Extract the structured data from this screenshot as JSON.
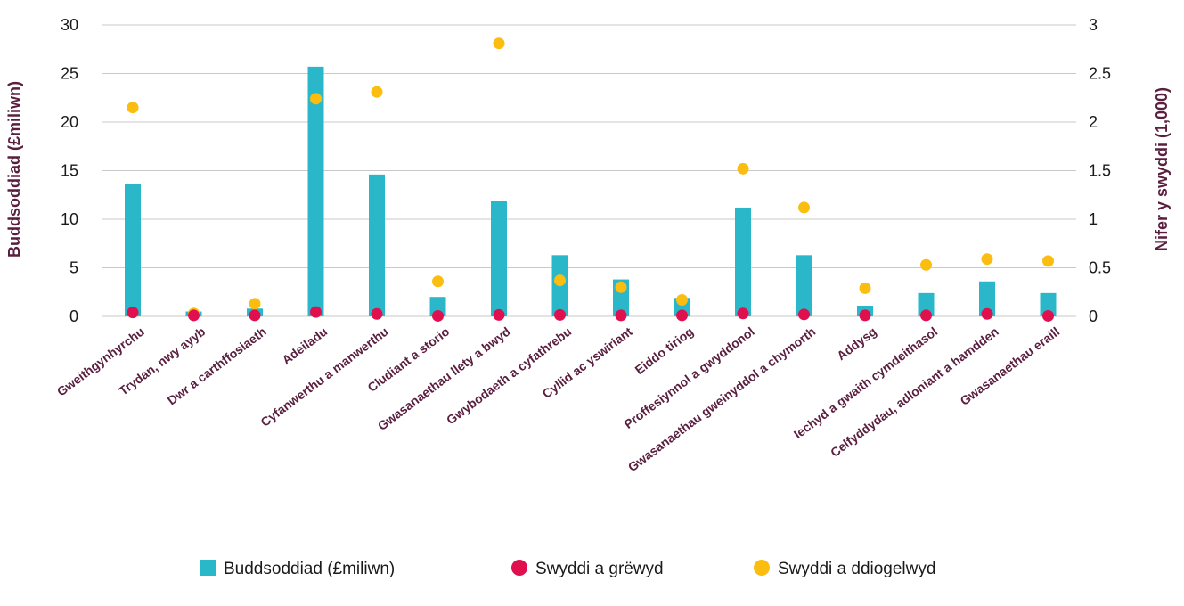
{
  "chart_data": {
    "type": "bar",
    "categories": [
      "Gweithgynhyrchu",
      "Trydan, nwy ayyb",
      "Dwr a carthffosiaeth",
      "Adeiladu",
      "Cyfanwerthu a manwerthu",
      "Cludiant a storio",
      "Gwasanaethau llety a bwyd",
      "Gwybodaeth a cyfathrebu",
      "Cyllid ac yswiriant",
      "Eiddo tiriog",
      "Proffesiynnol a gwyddonol",
      "Gwasanaethau gweinyddol a chymorth",
      "Addysg",
      "Iechyd a gwaith cymdeithasol",
      "Celfyddydau, adloniant a hamdden",
      "Gwasanaethau eraill"
    ],
    "series": [
      {
        "name": "Buddsoddiad (£miliwn)",
        "type": "bar",
        "axis": "left",
        "color": "#2ab7ca",
        "values": [
          13.6,
          0.5,
          0.8,
          25.7,
          14.6,
          2.0,
          11.9,
          6.3,
          3.8,
          1.9,
          11.2,
          6.3,
          1.1,
          2.4,
          3.6,
          2.4
        ]
      },
      {
        "name": "Swyddi a grëwyd",
        "type": "scatter",
        "axis": "right",
        "color": "#e0104f",
        "values": [
          0.04,
          0.01,
          0.01,
          0.045,
          0.025,
          0.005,
          0.015,
          0.015,
          0.01,
          0.01,
          0.03,
          0.02,
          0.01,
          0.01,
          0.025,
          0.005
        ]
      },
      {
        "name": "Swyddi a ddiogelwyd",
        "type": "scatter",
        "axis": "right",
        "color": "#fbbd0f",
        "values": [
          2.15,
          0.03,
          0.13,
          2.24,
          2.31,
          0.36,
          2.81,
          0.37,
          0.3,
          0.17,
          1.52,
          1.12,
          0.29,
          0.53,
          0.59,
          0.57
        ]
      }
    ],
    "ylabel": "Buddsoddiad (£miliwn)",
    "ylabel_right": "Nifer y swyddi (1,000)",
    "ylim": [
      0,
      30
    ],
    "yticks": [
      "0",
      "5",
      "10",
      "15",
      "20",
      "25",
      "30"
    ],
    "ylim_right": [
      0,
      3
    ],
    "yticks_right": [
      "0",
      "0.5",
      "1",
      "1.5",
      "2",
      "2.5",
      "3"
    ],
    "grid": true,
    "legend_position": "bottom"
  }
}
